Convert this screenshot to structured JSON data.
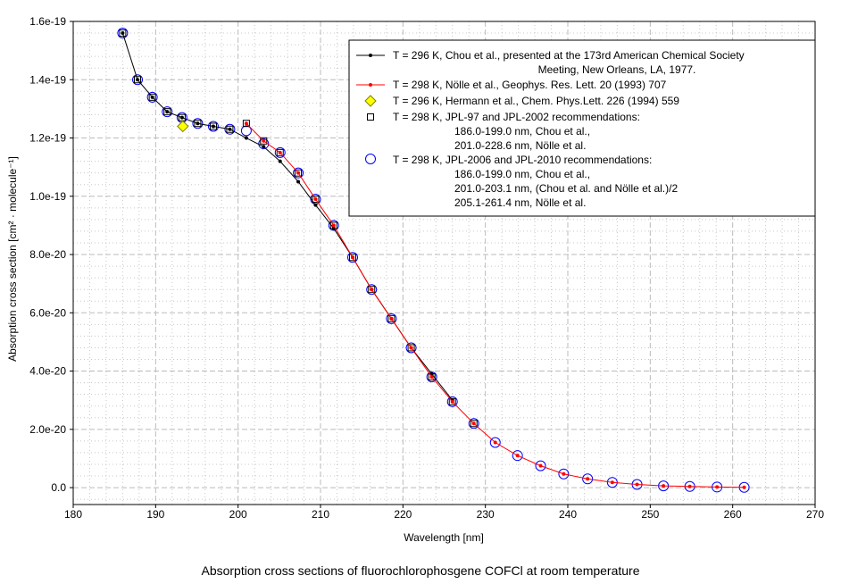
{
  "chart_data": {
    "type": "scatter",
    "title": "Absorption cross sections of fluorochlorophosgene COFCl at room temperature",
    "xlabel": "Wavelength [nm]",
    "ylabel": "Absorption cross section [cm² · molecule⁻¹]",
    "xlim": [
      180,
      270
    ],
    "ylim": [
      -5.8e-21,
      1.6e-19
    ],
    "xticks": [
      "180",
      "190",
      "200",
      "210",
      "220",
      "230",
      "240",
      "250",
      "260",
      "270"
    ],
    "xtick_values": [
      180,
      190,
      200,
      210,
      220,
      230,
      240,
      250,
      260,
      270
    ],
    "yticks": [
      "0.0",
      "2.0e-20",
      "4.0e-20",
      "6.0e-20",
      "8.0e-20",
      "1.0e-19",
      "1.2e-19",
      "1.4e-19",
      "1.6e-19"
    ],
    "ytick_values": [
      0,
      2e-20,
      4e-20,
      6e-20,
      8e-20,
      1e-19,
      1.2e-19,
      1.4e-19,
      1.6e-19
    ],
    "grid": true,
    "legend_placement": "top-right",
    "series": [
      {
        "name": "T = 296 K, Chou et al., presented at the 173rd American Chemical Society",
        "name2": "Meeting, New Orleans, LA, 1977.",
        "style": "line-dot",
        "color": "#000000",
        "x": [
          186.0,
          187.8,
          189.6,
          191.4,
          193.2,
          195.1,
          197.0,
          199.0,
          201.0,
          203.1,
          205.1,
          207.3,
          209.4,
          211.6,
          213.9,
          216.2,
          218.6,
          221.0,
          223.5,
          226.0
        ],
        "y": [
          1.56e-19,
          1.4e-19,
          1.34e-19,
          1.29e-19,
          1.27e-19,
          1.25e-19,
          1.24e-19,
          1.23e-19,
          1.2e-19,
          1.17e-19,
          1.12e-19,
          1.05e-19,
          9.7e-20,
          8.9e-20,
          7.9e-20,
          6.8e-20,
          5.8e-20,
          4.8e-20,
          3.9e-20,
          3e-20
        ]
      },
      {
        "name": "T = 298 K, Nölle et al., Geophys. Res. Lett. 20 (1993) 707",
        "style": "line-dot",
        "color": "#ff0000",
        "x": [
          201.0,
          203.1,
          205.1,
          207.3,
          209.4,
          211.6,
          213.9,
          216.2,
          218.6,
          221.0,
          223.5,
          226.0,
          228.6,
          231.2,
          233.9,
          236.7,
          239.5,
          242.4,
          245.4,
          248.4,
          251.6,
          254.8,
          258.1,
          261.4
        ],
        "y": [
          1.25e-19,
          1.19e-19,
          1.15e-19,
          1.08e-19,
          9.9e-20,
          9e-20,
          7.9e-20,
          6.8e-20,
          5.8e-20,
          4.8e-20,
          3.8e-20,
          2.95e-20,
          2.2e-20,
          1.55e-20,
          1.1e-20,
          7.5e-21,
          4.7e-21,
          3e-21,
          1.8e-21,
          1.1e-21,
          6e-22,
          4e-22,
          2e-22,
          1e-22
        ]
      },
      {
        "name": "T = 296 K, Hermann et al., Chem. Phys.Lett. 226 (1994) 559",
        "style": "diamond",
        "color": "#ffff00",
        "x": [
          193.3
        ],
        "y": [
          1.24e-19
        ]
      },
      {
        "name": "T = 298 K, JPL-97 and JPL-2002 recommendations:",
        "notes": [
          "186.0-199.0 nm, Chou et al.,",
          "201.0-228.6 nm, Nölle et al."
        ],
        "style": "square",
        "color": "#000000",
        "x": [
          186.0,
          187.8,
          189.6,
          191.4,
          193.2,
          195.1,
          197.0,
          199.0,
          201.0,
          203.1,
          205.1,
          207.3,
          209.4,
          211.6,
          213.9,
          216.2,
          218.6,
          221.0,
          223.5,
          226.0,
          228.6
        ],
        "y": [
          1.56e-19,
          1.4e-19,
          1.34e-19,
          1.29e-19,
          1.27e-19,
          1.25e-19,
          1.24e-19,
          1.23e-19,
          1.25e-19,
          1.19e-19,
          1.15e-19,
          1.08e-19,
          9.9e-20,
          9e-20,
          7.9e-20,
          6.8e-20,
          5.8e-20,
          4.8e-20,
          3.8e-20,
          2.95e-20,
          2.2e-20
        ]
      },
      {
        "name": "T = 298 K, JPL-2006 and JPL-2010 recommendations:",
        "notes": [
          "186.0-199.0 nm, Chou et al.,",
          "201.0-203.1 nm, (Chou et al. and Nölle et al.)/2",
          "205.1-261.4 nm, Nölle et al."
        ],
        "style": "circle",
        "color": "#0000ff",
        "x": [
          186.0,
          187.8,
          189.6,
          191.4,
          193.2,
          195.1,
          197.0,
          199.0,
          201.0,
          203.1,
          205.1,
          207.3,
          209.4,
          211.6,
          213.9,
          216.2,
          218.6,
          221.0,
          223.5,
          226.0,
          228.6,
          231.2,
          233.9,
          236.7,
          239.5,
          242.4,
          245.4,
          248.4,
          251.6,
          254.8,
          258.1,
          261.4
        ],
        "y": [
          1.56e-19,
          1.4e-19,
          1.34e-19,
          1.29e-19,
          1.27e-19,
          1.25e-19,
          1.24e-19,
          1.23e-19,
          1.225e-19,
          1.18e-19,
          1.15e-19,
          1.08e-19,
          9.9e-20,
          9e-20,
          7.9e-20,
          6.8e-20,
          5.8e-20,
          4.8e-20,
          3.8e-20,
          2.95e-20,
          2.2e-20,
          1.55e-20,
          1.1e-20,
          7.5e-21,
          4.7e-21,
          3e-21,
          1.8e-21,
          1.1e-21,
          6e-22,
          4e-22,
          2e-22,
          1e-22
        ]
      }
    ]
  }
}
